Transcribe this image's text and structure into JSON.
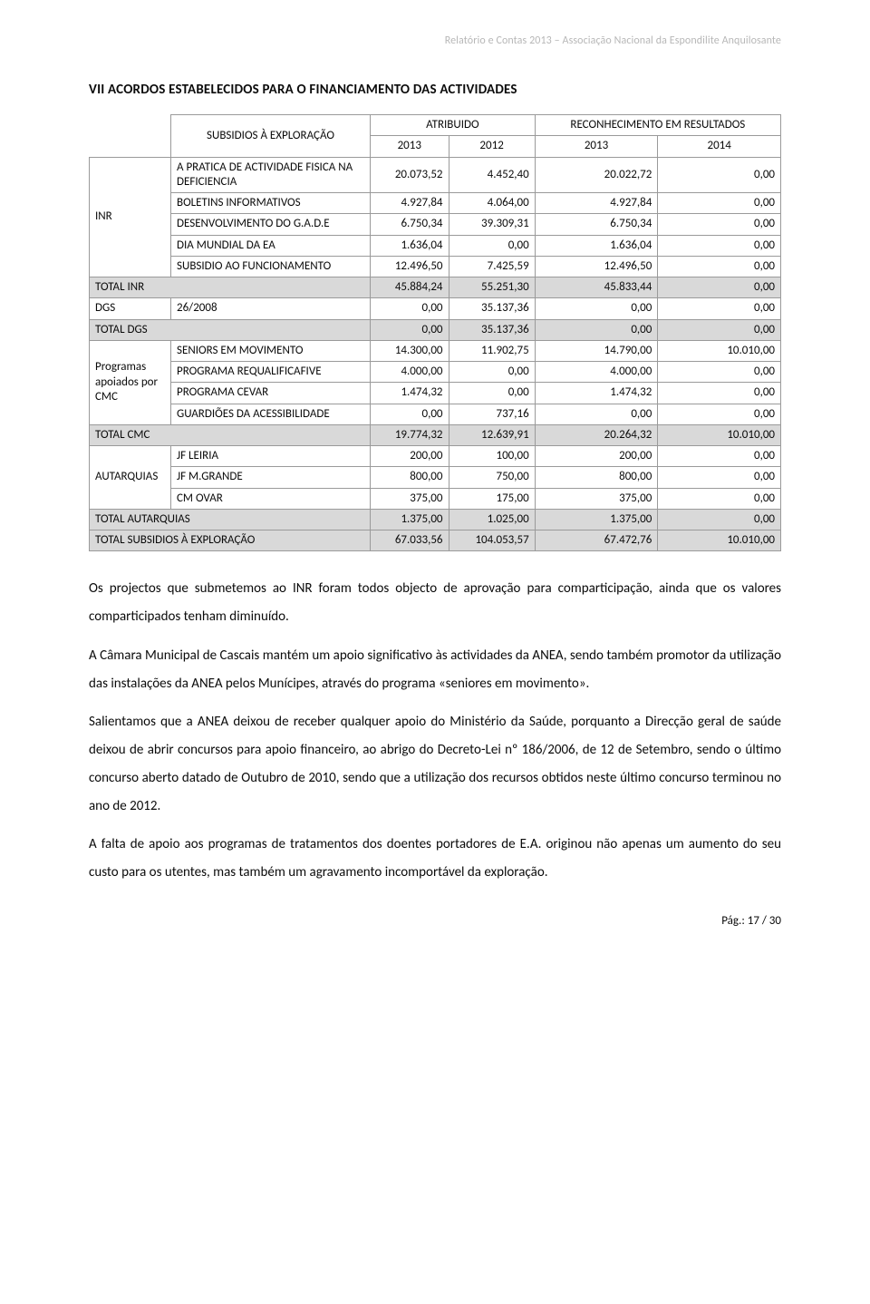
{
  "header": {
    "text": "Relatório e Contas 2013 – Associação Nacional da Espondilite Anquilosante"
  },
  "section": {
    "title": "VII ACORDOS ESTABELECIDOS PARA O FINANCIAMENTO DAS ACTIVIDADES"
  },
  "table": {
    "top_label": "SUBSIDIOS À EXPLORAÇÃO",
    "col_group_left": "ATRIBUIDO",
    "col_group_right": "RECONHECIMENTO EM RESULTADOS",
    "years": [
      "2013",
      "2012",
      "2013",
      "2014"
    ],
    "groups": [
      {
        "label": "INR",
        "rows": [
          {
            "desc": "A PRATICA DE ACTIVIDADE FISICA NA DEFICIENCIA",
            "c": [
              "20.073,52",
              "4.452,40",
              "20.022,72",
              "0,00"
            ]
          },
          {
            "desc": "BOLETINS INFORMATIVOS",
            "c": [
              "4.927,84",
              "4.064,00",
              "4.927,84",
              "0,00"
            ]
          },
          {
            "desc": "DESENVOLVIMENTO DO G.A.D.E",
            "c": [
              "6.750,34",
              "39.309,31",
              "6.750,34",
              "0,00"
            ]
          },
          {
            "desc": "DIA MUNDIAL DA EA",
            "c": [
              "1.636,04",
              "0,00",
              "1.636,04",
              "0,00"
            ]
          },
          {
            "desc": "SUBSIDIO AO FUNCIONAMENTO",
            "c": [
              "12.496,50",
              "7.425,59",
              "12.496,50",
              "0,00"
            ]
          }
        ],
        "total": {
          "desc": "TOTAL INR",
          "c": [
            "45.884,24",
            "55.251,30",
            "45.833,44",
            "0,00"
          ]
        }
      },
      {
        "label": "DGS",
        "rows": [
          {
            "desc": "26/2008",
            "c": [
              "0,00",
              "35.137,36",
              "0,00",
              "0,00"
            ]
          }
        ],
        "total": {
          "desc": "TOTAL DGS",
          "c": [
            "0,00",
            "35.137,36",
            "0,00",
            "0,00"
          ]
        }
      },
      {
        "label": "Programas apoiados por CMC",
        "rows": [
          {
            "desc": "SENIORS EM MOVIMENTO",
            "c": [
              "14.300,00",
              "11.902,75",
              "14.790,00",
              "10.010,00"
            ]
          },
          {
            "desc": "PROGRAMA REQUALIFICAFIVE",
            "c": [
              "4.000,00",
              "0,00",
              "4.000,00",
              "0,00"
            ]
          },
          {
            "desc": "PROGRAMA CEVAR",
            "c": [
              "1.474,32",
              "0,00",
              "1.474,32",
              "0,00"
            ]
          },
          {
            "desc": "GUARDIÕES DA ACESSIBILIDADE",
            "c": [
              "0,00",
              "737,16",
              "0,00",
              "0,00"
            ]
          }
        ],
        "total": {
          "desc": "TOTAL CMC",
          "c": [
            "19.774,32",
            "12.639,91",
            "20.264,32",
            "10.010,00"
          ]
        }
      },
      {
        "label": "AUTARQUIAS",
        "rows": [
          {
            "desc": "JF LEIRIA",
            "c": [
              "200,00",
              "100,00",
              "200,00",
              "0,00"
            ]
          },
          {
            "desc": "JF M.GRANDE",
            "c": [
              "800,00",
              "750,00",
              "800,00",
              "0,00"
            ]
          },
          {
            "desc": "CM OVAR",
            "c": [
              "375,00",
              "175,00",
              "375,00",
              "0,00"
            ]
          }
        ],
        "total": {
          "desc": "TOTAL AUTARQUIAS",
          "c": [
            "1.375,00",
            "1.025,00",
            "1.375,00",
            "0,00"
          ]
        }
      }
    ],
    "grand_total": {
      "desc": "TOTAL SUBSIDIOS À EXPLORAÇÃO",
      "c": [
        "67.033,56",
        "104.053,57",
        "67.472,76",
        "10.010,00"
      ]
    }
  },
  "paragraphs": [
    "Os projectos que submetemos ao INR foram todos objecto de aprovação para comparticipação, ainda que os valores comparticipados tenham diminuído.",
    "A Câmara Municipal de Cascais mantém um apoio significativo às actividades da ANEA, sendo também promotor da utilização das instalações da ANEA pelos Munícipes, através do programa «seniores em movimento».",
    "Salientamos que a ANEA deixou de receber qualquer apoio do Ministério da Saúde, porquanto a Direcção geral de saúde deixou de abrir concursos para apoio financeiro, ao abrigo do Decreto-Lei nº 186/2006, de 12 de Setembro, sendo o último concurso aberto datado de Outubro de 2010, sendo que a utilização dos recursos obtidos neste último concurso terminou no ano de 2012.",
    "A falta de apoio aos programas de tratamentos dos doentes portadores de E.A. originou não apenas um aumento do seu custo para os utentes, mas também um agravamento incomportável da exploração."
  ],
  "footer": {
    "text": "Pág.: 17 / 30"
  }
}
